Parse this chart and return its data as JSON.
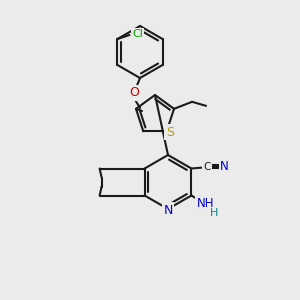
{
  "bg_color": "#ebebeb",
  "bond_color": "#1a1a1a",
  "atom_colors": {
    "N": "#0000cc",
    "O": "#cc0000",
    "S": "#b8a000",
    "Cl": "#00aa00",
    "C": "#1a1a1a",
    "H": "#008888"
  },
  "lw": 1.5
}
